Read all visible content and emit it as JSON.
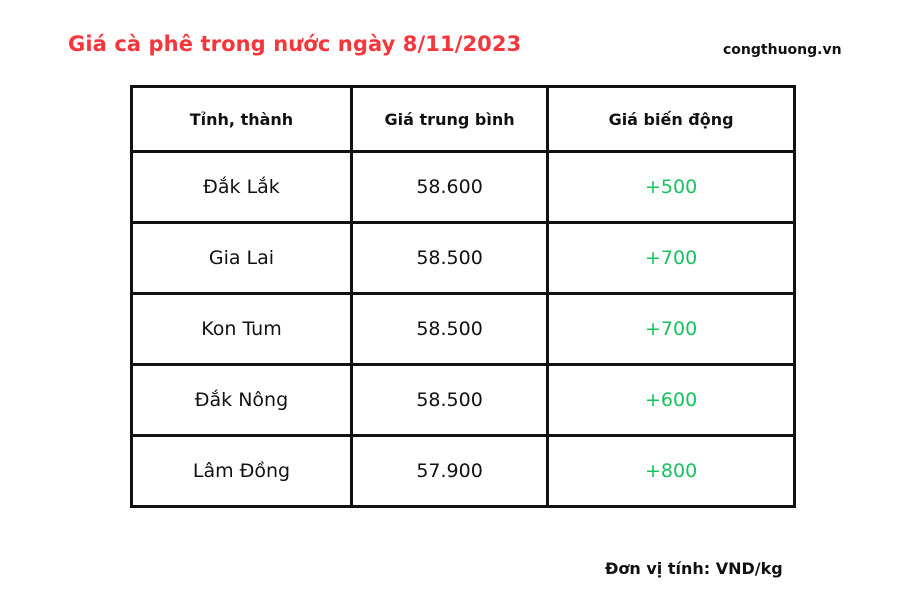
{
  "title": "Giá cà phê trong nước ngày 8/11/2023",
  "brand": "congthuong.vn",
  "unit_note": "Đơn vị tính: VND/kg",
  "colors": {
    "title": "#f5363c",
    "change_positive": "#17c15f"
  },
  "chart_data": {
    "type": "table",
    "columns": [
      "Tỉnh, thành",
      "Giá trung bình",
      "Giá biến động"
    ],
    "rows": [
      [
        "Đắk Lắk",
        "58.600",
        "+500"
      ],
      [
        "Gia Lai",
        "58.500",
        "+700"
      ],
      [
        "Kon Tum",
        "58.500",
        "+700"
      ],
      [
        "Đắk Nông",
        "58.500",
        "+600"
      ],
      [
        "Lâm Đồng",
        "57.900",
        "+800"
      ]
    ]
  }
}
